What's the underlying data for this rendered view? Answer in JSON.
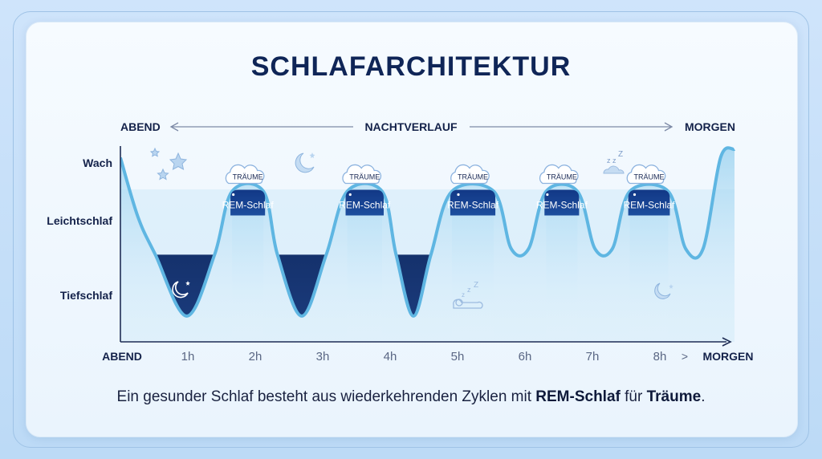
{
  "title": "SCHLAFARCHITEKTUR",
  "timeline": {
    "start": "ABEND",
    "middle": "NACHTVERLAUF",
    "end": "MORGEN"
  },
  "caption": {
    "part1": "Ein gesunder Schlaf besteht aus wiederkehrenden Zyklen mit ",
    "rem": "REM-Schlaf",
    "part2": " für ",
    "dream": "Träume",
    "part3": "."
  },
  "chart_data": {
    "type": "area",
    "title": "SCHLAFARCHITEKTUR",
    "y_categories": [
      "Wach",
      "Leichtschlaf",
      "Tiefschlaf"
    ],
    "x_ticks": [
      {
        "label": "ABEND",
        "value": 0
      },
      {
        "label": "1h",
        "value": 1
      },
      {
        "label": "2h",
        "value": 2
      },
      {
        "label": "3h",
        "value": 3
      },
      {
        "label": "4h",
        "value": 4
      },
      {
        "label": "5h",
        "value": 5
      },
      {
        "label": "6h",
        "value": 6
      },
      {
        "label": "7h",
        "value": 7
      },
      {
        "label": "8h",
        "value": 8
      },
      {
        "label": "MORGEN",
        "value": 8.8
      }
    ],
    "x_arrow_glyph": ">",
    "xlim": [
      0,
      8.8
    ],
    "ylim": [
      0,
      2
    ],
    "series": [
      {
        "points": [
          [
            0.0,
            1.9
          ],
          [
            0.25,
            1.2
          ],
          [
            0.5,
            0.75
          ],
          [
            0.95,
            0.02
          ],
          [
            1.35,
            0.75
          ],
          [
            1.6,
            1.5
          ],
          [
            2.05,
            1.5
          ],
          [
            2.25,
            0.75
          ],
          [
            2.6,
            0.02
          ],
          [
            2.95,
            0.75
          ],
          [
            3.25,
            1.5
          ],
          [
            3.75,
            1.5
          ],
          [
            3.95,
            0.75
          ],
          [
            4.2,
            0.02
          ],
          [
            4.45,
            0.75
          ],
          [
            4.75,
            1.5
          ],
          [
            5.35,
            1.5
          ],
          [
            5.6,
            0.82
          ],
          [
            5.85,
            0.82
          ],
          [
            6.1,
            1.5
          ],
          [
            6.55,
            1.5
          ],
          [
            6.8,
            0.82
          ],
          [
            7.05,
            0.82
          ],
          [
            7.3,
            1.5
          ],
          [
            7.85,
            1.5
          ],
          [
            8.1,
            0.82
          ],
          [
            8.35,
            0.82
          ],
          [
            8.6,
            1.9
          ],
          [
            8.8,
            2.0
          ]
        ]
      }
    ],
    "rem_label": "REM-Schlaf",
    "dream_label": "TRÄUME",
    "rem_periods": [
      [
        1.6,
        2.05
      ],
      [
        3.25,
        3.75
      ],
      [
        4.75,
        5.35
      ],
      [
        6.1,
        6.55
      ],
      [
        7.3,
        7.85
      ]
    ],
    "deep_periods": [
      [
        0.5,
        1.35
      ],
      [
        2.25,
        2.95
      ],
      [
        3.95,
        4.45
      ]
    ],
    "colors": {
      "deep": "#10295e",
      "rem": "#173f8a",
      "line": "#5fb6e2",
      "band": "#a9d8f1"
    }
  }
}
